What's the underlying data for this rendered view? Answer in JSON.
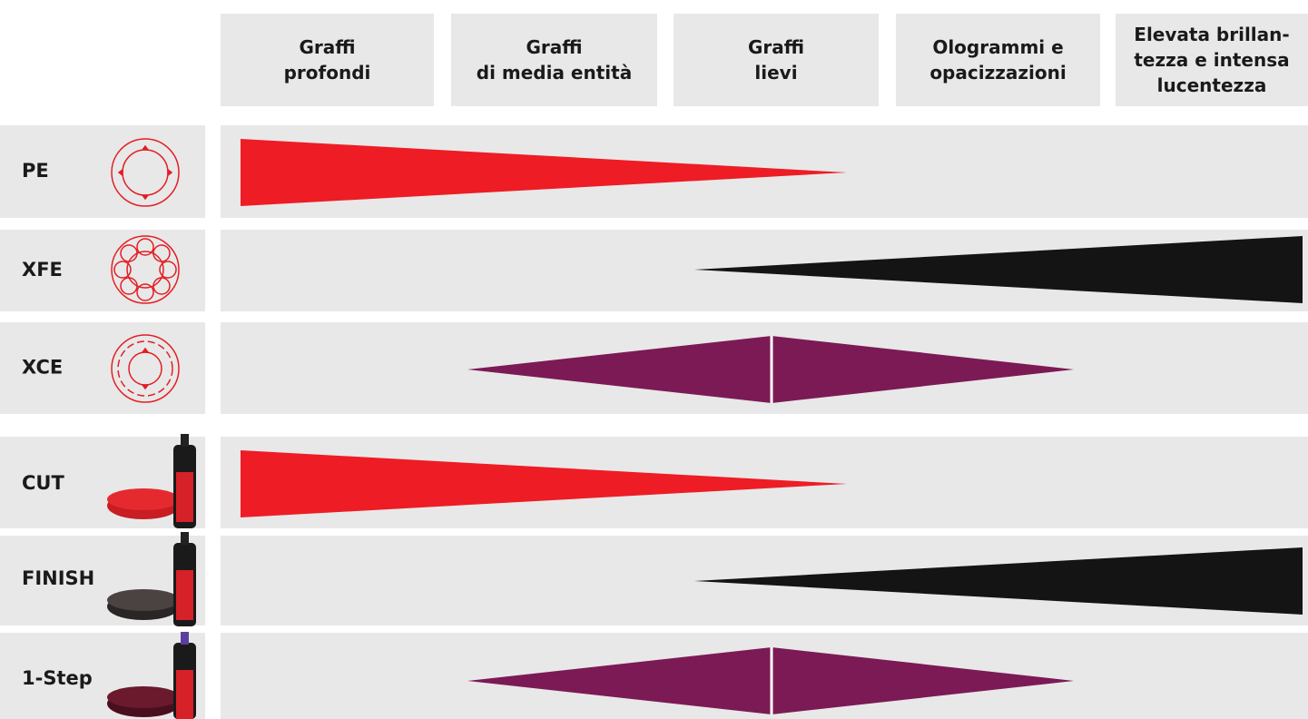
{
  "header": {
    "columns": [
      [
        "Graffi",
        "profondi"
      ],
      [
        "Graffi",
        "di media entità"
      ],
      [
        "Graffi",
        "lievi"
      ],
      [
        "Ologrammi e",
        "opacizzazioni"
      ],
      [
        "Elevata brillan-",
        "tezza e intensa",
        "lucentezza"
      ]
    ]
  },
  "rows": [
    "PE",
    "XFE",
    "XCE",
    "CUT",
    "FINISH",
    "1-Step"
  ]
}
